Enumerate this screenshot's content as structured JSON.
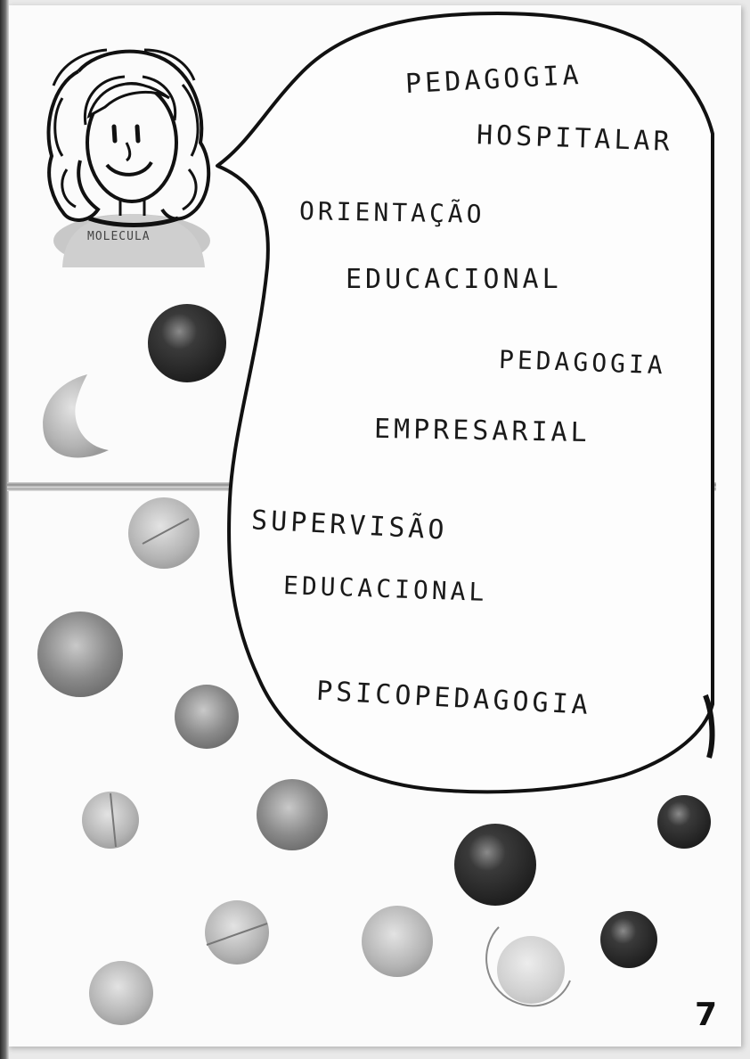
{
  "speech_lines": [
    "PEDAGOGIA",
    "HOSPITALAR",
    "ORIENTAÇÃO",
    "EDUCACIONAL",
    "PEDAGOGIA",
    "EMPRESARIAL",
    "SUPERVISÃO",
    "EDUCACIONAL",
    "PSICOPEDAGOGIA"
  ],
  "shirt_text": "MOLECULA",
  "page_number": "7",
  "colors": {
    "ink": "#1a1a1a",
    "paper": "#fbfbfb",
    "dot_dark": "#2f2f2f",
    "dot_mid": "#7c7c7c",
    "dot_light": "#b8b8b8"
  }
}
